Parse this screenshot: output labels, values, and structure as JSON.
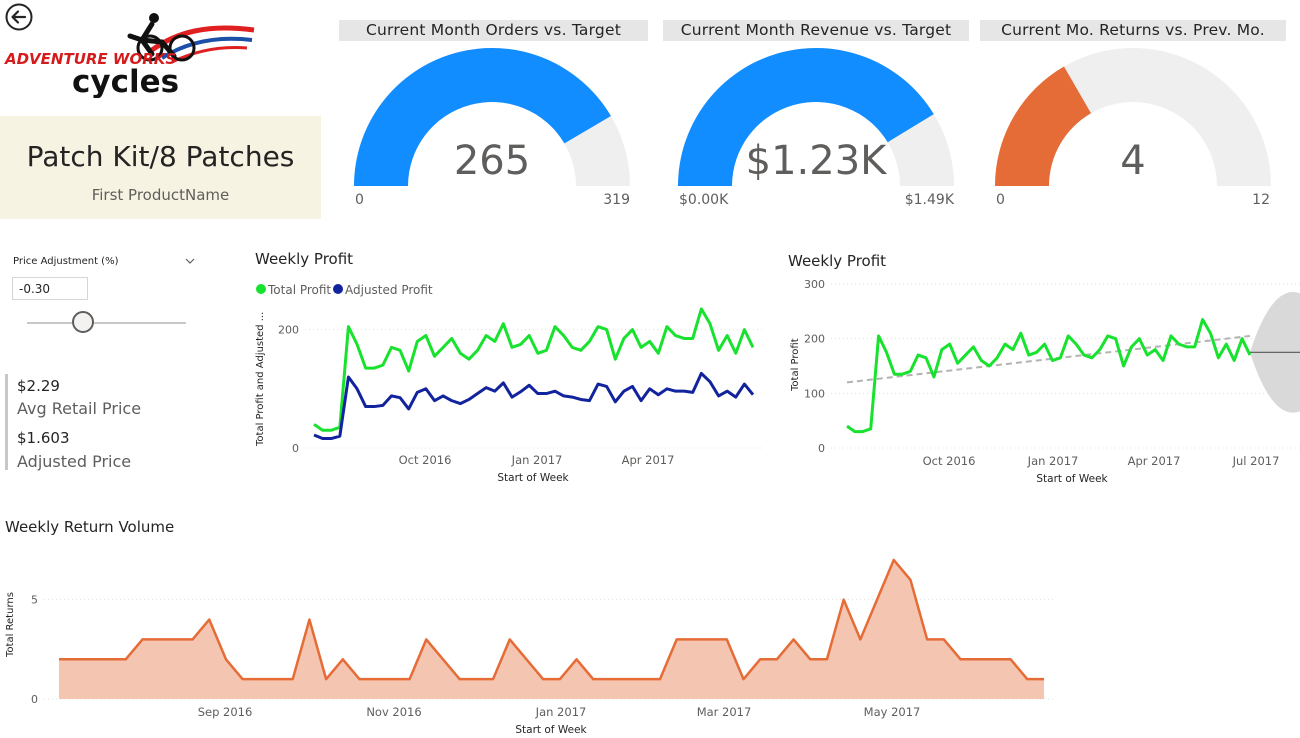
{
  "header": {
    "logo_line1": "ADVENTURE WORKS",
    "logo_line2": "cycles"
  },
  "card": {
    "value": "Patch Kit/8 Patches",
    "label": "First ProductName"
  },
  "gauges": [
    {
      "title": "Current Month Orders vs. Target",
      "value_text": "265",
      "value": 265,
      "min": 0,
      "max": 319,
      "min_text": "0",
      "max_text": "319",
      "color": "#118DFF"
    },
    {
      "title": "Current Month Revenue vs. Target",
      "value_text": "$1.23K",
      "value": 1.23,
      "min": 0,
      "max": 1.49,
      "min_text": "$0.00K",
      "max_text": "$1.49K",
      "color": "#118DFF"
    },
    {
      "title": "Current Mo. Returns vs. Prev. Mo.",
      "value_text": "4",
      "value": 4,
      "min": 0,
      "max": 12,
      "min_text": "0",
      "max_text": "12",
      "color": "#E66C37"
    }
  ],
  "slicer": {
    "title": "Price Adjustment (%)",
    "value": "-0.30",
    "fraction": 0.35
  },
  "multirow": {
    "avg_retail_value": "$2.29",
    "avg_retail_label": "Avg Retail Price",
    "adjusted_value": "$1.603",
    "adjusted_label": "Adjusted Price"
  },
  "colors": {
    "total_profit": "#17E22E",
    "adjusted_profit": "#12239E",
    "returns_line": "#E66C37",
    "returns_fill": "#F4C5B0",
    "gauge_bg": "#EFEFEF",
    "trend": "#B3B3B3",
    "forecast_band": "#D9D9D9"
  },
  "chart_data": [
    {
      "type": "line",
      "title": "Weekly Profit",
      "xlabel": "Start of Week",
      "ylabel": "Total Profit and Adjusted ...",
      "legend": "top-left",
      "legend_entries": [
        "Total Profit",
        "Adjusted Profit"
      ],
      "x_ticks": [
        "Oct 2016",
        "Jan 2017",
        "Apr 2017"
      ],
      "y_ticks": [
        "0",
        "200"
      ],
      "ylim": [
        0,
        250
      ],
      "x": [
        "2016-07-04",
        "2016-07-11",
        "2016-07-18",
        "2016-07-25",
        "2016-08-01",
        "2016-08-08",
        "2016-08-15",
        "2016-08-22",
        "2016-08-29",
        "2016-09-05",
        "2016-09-12",
        "2016-09-19",
        "2016-09-26",
        "2016-10-03",
        "2016-10-10",
        "2016-10-17",
        "2016-10-24",
        "2016-10-31",
        "2016-11-07",
        "2016-11-14",
        "2016-11-21",
        "2016-11-28",
        "2016-12-05",
        "2016-12-12",
        "2016-12-19",
        "2016-12-26",
        "2017-01-02",
        "2017-01-09",
        "2017-01-16",
        "2017-01-23",
        "2017-01-30",
        "2017-02-06",
        "2017-02-13",
        "2017-02-20",
        "2017-02-27",
        "2017-03-06",
        "2017-03-13",
        "2017-03-20",
        "2017-03-27",
        "2017-04-03",
        "2017-04-10",
        "2017-04-17",
        "2017-04-24",
        "2017-05-01",
        "2017-05-08",
        "2017-05-15",
        "2017-05-22",
        "2017-05-29",
        "2017-06-05",
        "2017-06-12",
        "2017-06-19",
        "2017-06-26"
      ],
      "series": [
        {
          "name": "Total Profit",
          "values": [
            40,
            30,
            30,
            35,
            205,
            175,
            135,
            135,
            140,
            170,
            165,
            130,
            180,
            190,
            155,
            170,
            185,
            160,
            150,
            165,
            190,
            180,
            210,
            170,
            175,
            190,
            160,
            165,
            205,
            190,
            170,
            165,
            180,
            205,
            200,
            150,
            185,
            200,
            170,
            180,
            160,
            205,
            190,
            185,
            185,
            235,
            210,
            165,
            190,
            160,
            200,
            170
          ]
        },
        {
          "name": "Adjusted Profit",
          "values": [
            22,
            16,
            16,
            20,
            120,
            100,
            70,
            70,
            72,
            88,
            85,
            66,
            94,
            100,
            80,
            88,
            80,
            75,
            82,
            92,
            102,
            96,
            110,
            86,
            95,
            106,
            92,
            92,
            96,
            88,
            86,
            82,
            80,
            108,
            104,
            78,
            96,
            104,
            80,
            100,
            90,
            100,
            96,
            96,
            94,
            126,
            112,
            88,
            96,
            86,
            108,
            90
          ]
        }
      ]
    },
    {
      "type": "line",
      "title": "Weekly Profit",
      "xlabel": "Start of Week",
      "ylabel": "Total Profit",
      "x_ticks": [
        "Oct 2016",
        "Jan 2017",
        "Apr 2017",
        "Jul 2017"
      ],
      "y_ticks": [
        "0",
        "100",
        "200",
        "300"
      ],
      "ylim": [
        0,
        300
      ],
      "series": [
        {
          "name": "Total Profit",
          "values": [
            40,
            30,
            30,
            35,
            205,
            175,
            135,
            135,
            140,
            170,
            165,
            130,
            180,
            190,
            155,
            170,
            185,
            160,
            150,
            165,
            190,
            180,
            210,
            170,
            175,
            190,
            160,
            165,
            205,
            190,
            170,
            165,
            180,
            205,
            200,
            150,
            185,
            200,
            170,
            180,
            160,
            205,
            190,
            185,
            185,
            235,
            210,
            165,
            190,
            160,
            200,
            170
          ]
        }
      ],
      "trend": [
        120,
        205
      ],
      "forecast": {
        "center": 175,
        "upper": 290,
        "lower": 60
      }
    },
    {
      "type": "area",
      "title": "Weekly Return Volume",
      "xlabel": "Start of Week",
      "ylabel": "Total Returns",
      "x_ticks": [
        "Sep 2016",
        "Nov 2016",
        "Jan 2017",
        "Mar 2017",
        "May 2017"
      ],
      "y_ticks": [
        "0",
        "5"
      ],
      "ylim": [
        0,
        7.5
      ],
      "series": [
        {
          "name": "Total Returns",
          "values": [
            2,
            2,
            2,
            2,
            2,
            3,
            3,
            3,
            3,
            4,
            2,
            1,
            1,
            1,
            1,
            4,
            1,
            2,
            1,
            1,
            1,
            1,
            3,
            2,
            1,
            1,
            1,
            3,
            2,
            1,
            1,
            2,
            1,
            1,
            1,
            1,
            1,
            3,
            3,
            3,
            3,
            1,
            2,
            2,
            3,
            2,
            2,
            5,
            3,
            5,
            7,
            6,
            3,
            3,
            2,
            2,
            2,
            2,
            1,
            1
          ]
        }
      ]
    }
  ]
}
